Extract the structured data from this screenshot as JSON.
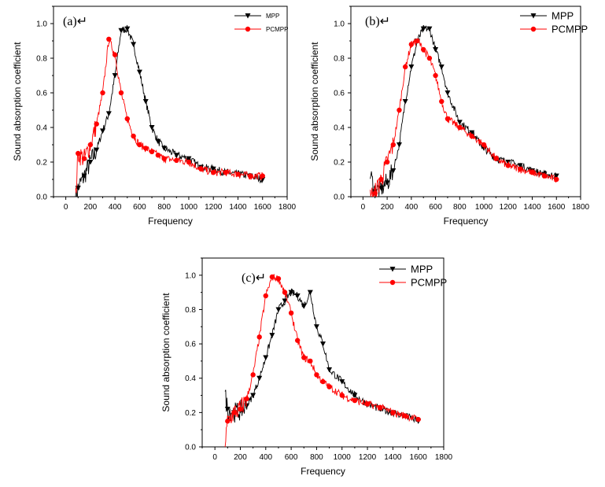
{
  "figure": {
    "colors": {
      "MPP": "#000000",
      "PCMPP": "#ff0000"
    }
  },
  "chart_data": [
    {
      "type": "line",
      "panel_label": "(a)↵",
      "xlabel": "Frequency",
      "ylabel": "Sound absorption coefficient",
      "xlim": [
        -100,
        1800
      ],
      "ylim": [
        0,
        1.1
      ],
      "xticks": [
        "0",
        "200",
        "400",
        "600",
        "800",
        "1000",
        "1200",
        "1400",
        "1600",
        "1800"
      ],
      "yticks": [
        "0.0",
        "0.2",
        "0.4",
        "0.6",
        "0.8",
        "1.0"
      ],
      "legend": {
        "placement": "top-right",
        "entries": [
          "MPP",
          "PCMPP"
        ]
      },
      "series": [
        {
          "name": "MPP",
          "marker": "triangle-down",
          "x": [
            80,
            100,
            150,
            200,
            250,
            300,
            350,
            400,
            450,
            500,
            550,
            600,
            650,
            700,
            750,
            800,
            900,
            1000,
            1100,
            1200,
            1300,
            1400,
            1500,
            1600
          ],
          "y": [
            0.0,
            0.05,
            0.12,
            0.2,
            0.27,
            0.38,
            0.48,
            0.7,
            0.96,
            0.97,
            0.88,
            0.72,
            0.55,
            0.4,
            0.32,
            0.28,
            0.24,
            0.22,
            0.17,
            0.16,
            0.14,
            0.13,
            0.12,
            0.1
          ]
        },
        {
          "name": "PCMPP",
          "marker": "circle",
          "x": [
            80,
            100,
            150,
            200,
            250,
            300,
            350,
            400,
            450,
            500,
            550,
            600,
            650,
            700,
            750,
            800,
            900,
            1000,
            1100,
            1200,
            1300,
            1400,
            1500,
            1600
          ],
          "y": [
            0.0,
            0.25,
            0.22,
            0.3,
            0.42,
            0.6,
            0.91,
            0.82,
            0.6,
            0.45,
            0.35,
            0.3,
            0.28,
            0.26,
            0.24,
            0.22,
            0.21,
            0.2,
            0.16,
            0.14,
            0.14,
            0.13,
            0.12,
            0.12
          ]
        }
      ]
    },
    {
      "type": "line",
      "panel_label": "(b)↵",
      "xlabel": "Frequency",
      "ylabel": "Sound absorption coefficient",
      "xlim": [
        -100,
        1800
      ],
      "ylim": [
        0,
        1.1
      ],
      "xticks": [
        "0",
        "200",
        "400",
        "600",
        "800",
        "1000",
        "1200",
        "1400",
        "1600",
        "1800"
      ],
      "yticks": [
        "0.0",
        "0.2",
        "0.4",
        "0.6",
        "0.8",
        "1.0"
      ],
      "legend": {
        "placement": "top-right",
        "entries": [
          "MPP",
          "PCMPP"
        ]
      },
      "series": [
        {
          "name": "MPP",
          "marker": "triangle-down",
          "x": [
            60,
            100,
            150,
            200,
            250,
            300,
            350,
            400,
            450,
            500,
            550,
            600,
            650,
            700,
            800,
            900,
            1000,
            1100,
            1200,
            1300,
            1400,
            1500,
            1600
          ],
          "y": [
            0.13,
            0.03,
            0.05,
            0.08,
            0.15,
            0.3,
            0.55,
            0.75,
            0.9,
            0.97,
            0.97,
            0.85,
            0.75,
            0.6,
            0.43,
            0.37,
            0.28,
            0.22,
            0.2,
            0.18,
            0.15,
            0.13,
            0.12
          ]
        },
        {
          "name": "PCMPP",
          "marker": "circle",
          "x": [
            60,
            100,
            150,
            200,
            250,
            300,
            350,
            400,
            450,
            500,
            550,
            600,
            650,
            700,
            800,
            900,
            1000,
            1100,
            1200,
            1300,
            1400,
            1500,
            1600
          ],
          "y": [
            0.0,
            0.02,
            0.1,
            0.2,
            0.3,
            0.5,
            0.75,
            0.88,
            0.9,
            0.85,
            0.8,
            0.7,
            0.55,
            0.45,
            0.4,
            0.35,
            0.3,
            0.22,
            0.18,
            0.16,
            0.14,
            0.12,
            0.1
          ]
        }
      ]
    },
    {
      "type": "line",
      "panel_label": "(c)↵",
      "xlabel": "Frequency",
      "ylabel": "Sound absorption coefficient",
      "xlim": [
        -100,
        1800
      ],
      "ylim": [
        0,
        1.1
      ],
      "xticks": [
        "0",
        "200",
        "400",
        "600",
        "800",
        "1000",
        "1200",
        "1400",
        "1600",
        "1800"
      ],
      "yticks": [
        "0.0",
        "0.2",
        "0.4",
        "0.6",
        "0.8",
        "1.0"
      ],
      "legend": {
        "placement": "top-right",
        "entries": [
          "MPP",
          "PCMPP"
        ]
      },
      "series": [
        {
          "name": "MPP",
          "marker": "triangle-down",
          "x": [
            80,
            100,
            150,
            200,
            250,
            300,
            350,
            400,
            450,
            500,
            550,
            600,
            650,
            700,
            750,
            800,
            850,
            900,
            1000,
            1100,
            1200,
            1300,
            1400,
            1500,
            1600
          ],
          "y": [
            0.3,
            0.22,
            0.2,
            0.21,
            0.24,
            0.3,
            0.4,
            0.52,
            0.65,
            0.8,
            0.85,
            0.9,
            0.88,
            0.82,
            0.9,
            0.7,
            0.6,
            0.45,
            0.38,
            0.3,
            0.25,
            0.22,
            0.2,
            0.18,
            0.15
          ]
        },
        {
          "name": "PCMPP",
          "marker": "circle",
          "x": [
            80,
            100,
            150,
            200,
            250,
            300,
            350,
            400,
            450,
            500,
            550,
            600,
            650,
            700,
            750,
            800,
            850,
            900,
            1000,
            1100,
            1200,
            1300,
            1400,
            1500,
            1600
          ],
          "y": [
            0.0,
            0.15,
            0.2,
            0.22,
            0.28,
            0.42,
            0.64,
            0.88,
            0.99,
            0.98,
            0.9,
            0.78,
            0.62,
            0.52,
            0.5,
            0.42,
            0.38,
            0.35,
            0.3,
            0.27,
            0.25,
            0.23,
            0.2,
            0.18,
            0.16
          ]
        }
      ]
    }
  ]
}
